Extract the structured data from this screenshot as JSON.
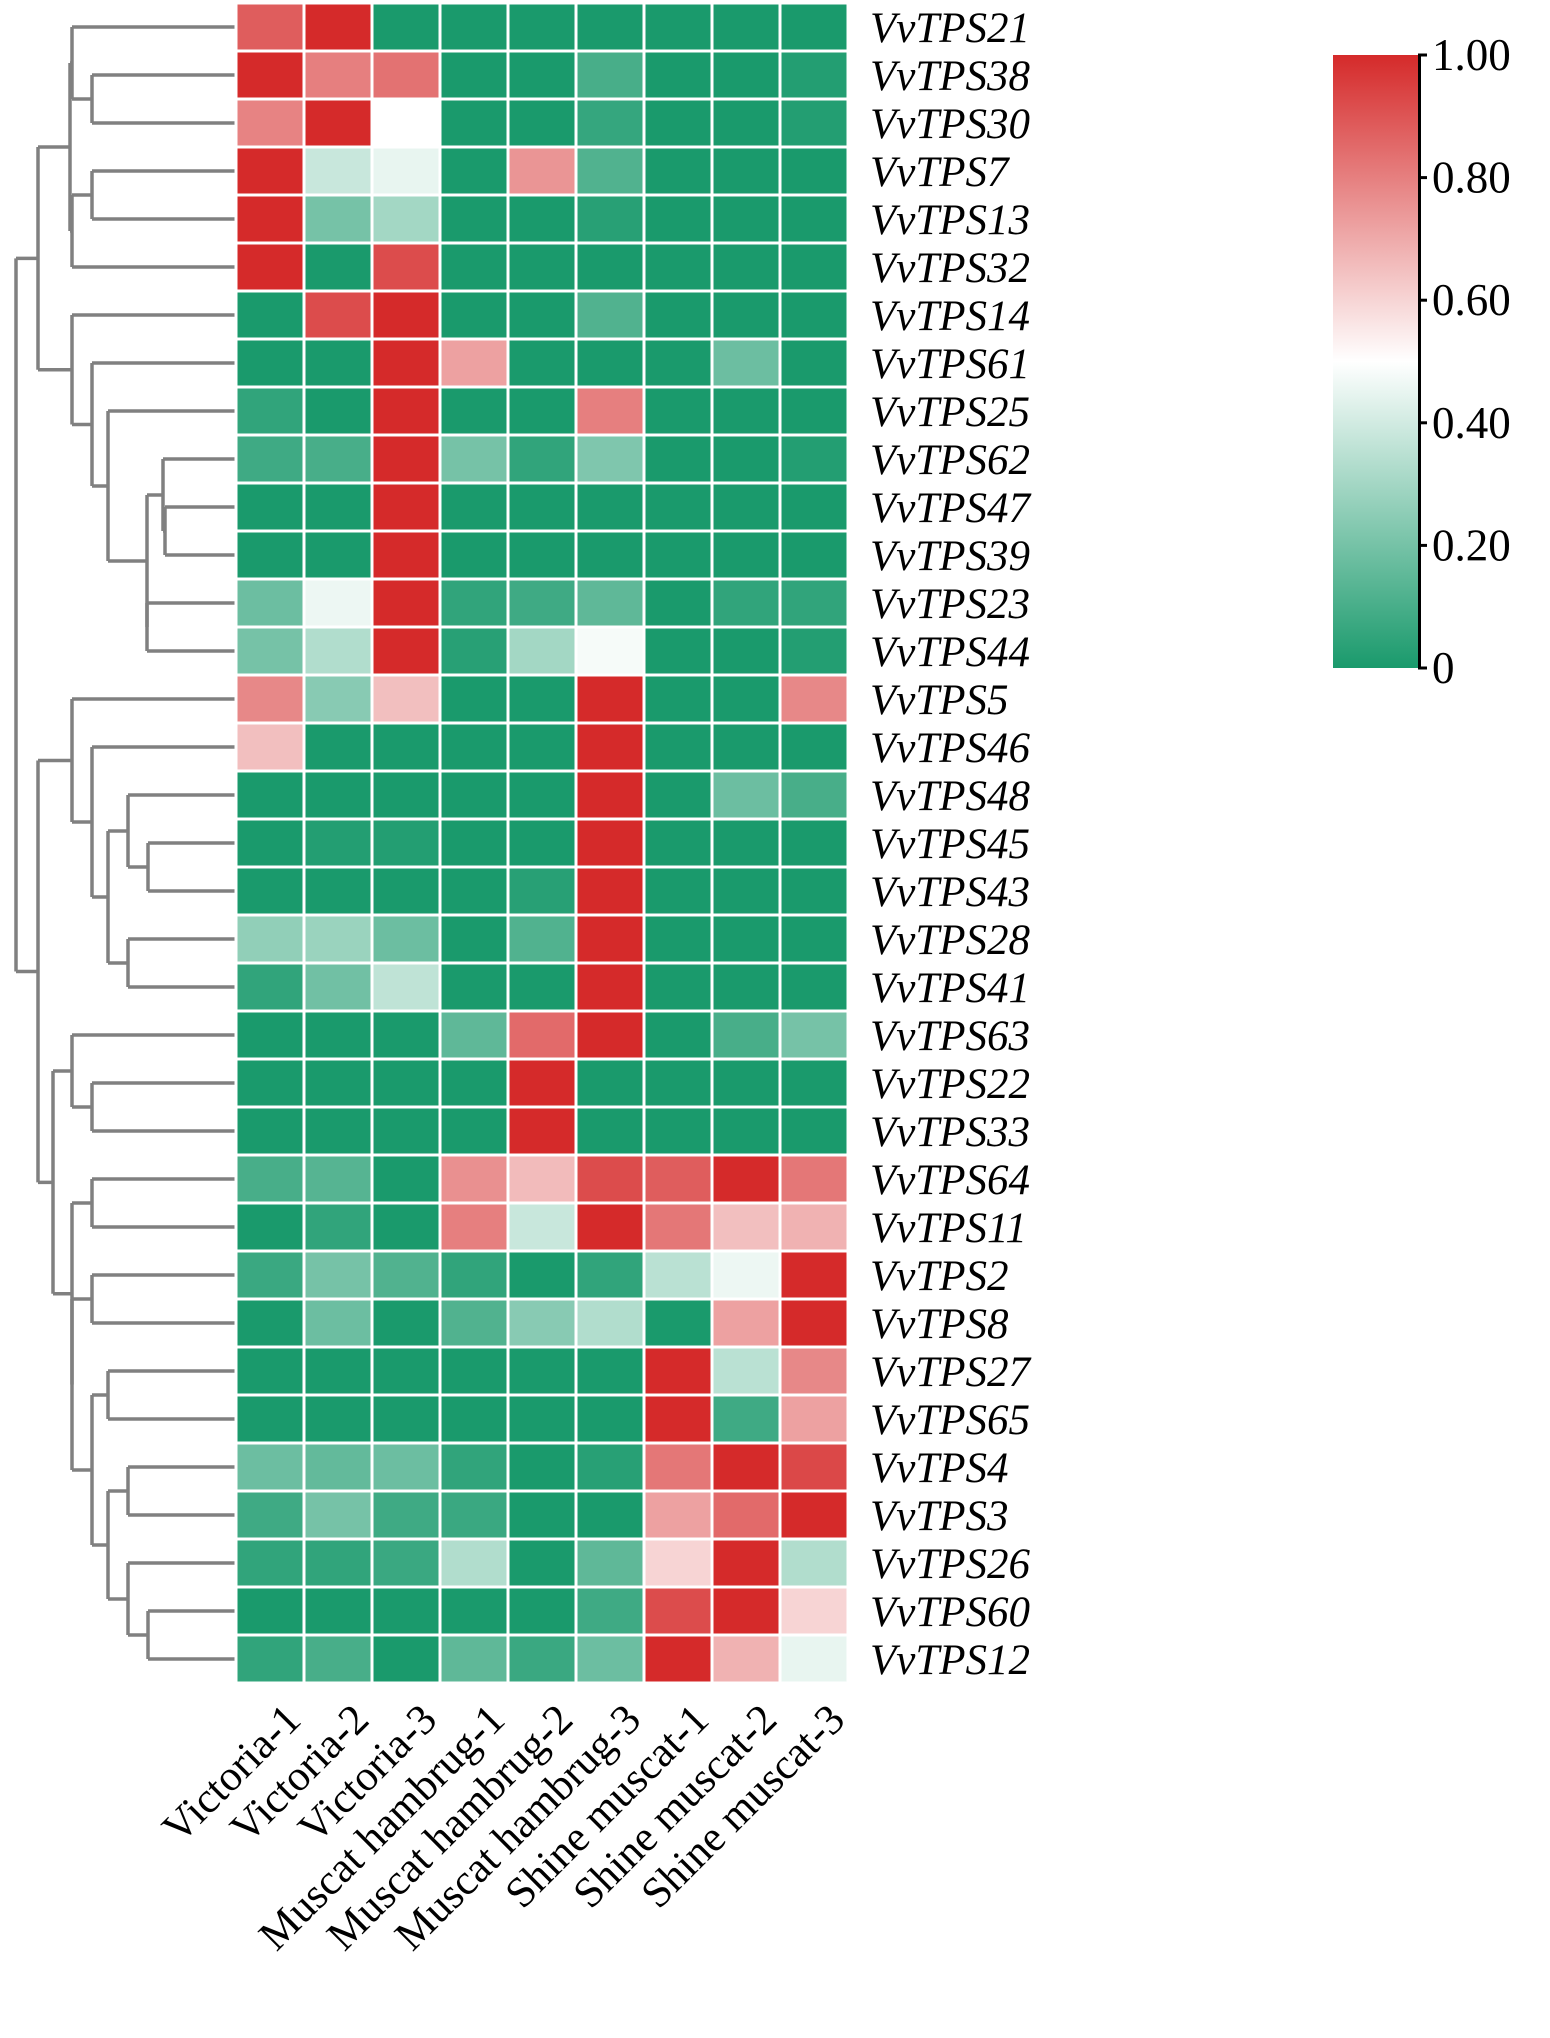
{
  "chart_data": {
    "type": "heatmap",
    "title": "",
    "xlabel": "",
    "ylabel": "",
    "columns": [
      "Victoria-1",
      "Victoria-2",
      "Victoria-3",
      "Muscat hambrug-1",
      "Muscat hambrug-2",
      "Muscat hambrug-3",
      "Shine muscat-1",
      "Shine muscat-2",
      "Shine muscat-3"
    ],
    "rows": [
      "VvTPS21",
      "VvTPS38",
      "VvTPS30",
      "VvTPS7",
      "VvTPS13",
      "VvTPS32",
      "VvTPS14",
      "VvTPS61",
      "VvTPS25",
      "VvTPS62",
      "VvTPS47",
      "VvTPS39",
      "VvTPS23",
      "VvTPS44",
      "VvTPS5",
      "VvTPS46",
      "VvTPS48",
      "VvTPS45",
      "VvTPS43",
      "VvTPS28",
      "VvTPS41",
      "VvTPS63",
      "VvTPS22",
      "VvTPS33",
      "VvTPS64",
      "VvTPS11",
      "VvTPS2",
      "VvTPS8",
      "VvTPS27",
      "VvTPS65",
      "VvTPS4",
      "VvTPS3",
      "VvTPS26",
      "VvTPS60",
      "VvTPS12"
    ],
    "values": [
      [
        0.88,
        1.0,
        0.0,
        0.0,
        0.0,
        0.0,
        0.0,
        0.0,
        0.0
      ],
      [
        1.0,
        0.8,
        0.83,
        0.0,
        0.0,
        0.1,
        0.0,
        0.0,
        0.02
      ],
      [
        0.79,
        1.0,
        0.5,
        0.0,
        0.0,
        0.06,
        0.0,
        0.0,
        0.02
      ],
      [
        1.0,
        0.38,
        0.45,
        0.0,
        0.75,
        0.12,
        0.0,
        0.0,
        0.0
      ],
      [
        1.0,
        0.2,
        0.3,
        0.0,
        0.0,
        0.03,
        0.0,
        0.0,
        0.0
      ],
      [
        1.0,
        0.0,
        0.92,
        0.0,
        0.0,
        0.0,
        0.0,
        0.0,
        0.0
      ],
      [
        0.0,
        0.92,
        1.0,
        0.0,
        0.0,
        0.12,
        0.0,
        0.0,
        0.0
      ],
      [
        0.0,
        0.0,
        1.0,
        0.72,
        0.0,
        0.0,
        0.0,
        0.18,
        0.0
      ],
      [
        0.05,
        0.0,
        1.0,
        0.0,
        0.0,
        0.8,
        0.0,
        0.0,
        0.0
      ],
      [
        0.08,
        0.1,
        1.0,
        0.2,
        0.05,
        0.22,
        0.0,
        0.0,
        0.02
      ],
      [
        0.0,
        0.0,
        1.0,
        0.0,
        0.0,
        0.0,
        0.0,
        0.0,
        0.0
      ],
      [
        0.0,
        0.0,
        1.0,
        0.0,
        0.0,
        0.0,
        0.0,
        0.0,
        0.0
      ],
      [
        0.18,
        0.46,
        1.0,
        0.05,
        0.08,
        0.15,
        0.0,
        0.05,
        0.05
      ],
      [
        0.2,
        0.33,
        1.0,
        0.03,
        0.3,
        0.48,
        0.0,
        0.0,
        0.02
      ],
      [
        0.78,
        0.24,
        0.65,
        0.0,
        0.0,
        1.0,
        0.0,
        0.0,
        0.78
      ],
      [
        0.65,
        0.0,
        0.0,
        0.0,
        0.0,
        1.0,
        0.0,
        0.0,
        0.0
      ],
      [
        0.0,
        0.0,
        0.0,
        0.0,
        0.0,
        1.0,
        0.0,
        0.18,
        0.1
      ],
      [
        0.0,
        0.02,
        0.02,
        0.0,
        0.0,
        1.0,
        0.0,
        0.0,
        0.0
      ],
      [
        0.0,
        0.0,
        0.0,
        0.0,
        0.03,
        1.0,
        0.0,
        0.0,
        0.0
      ],
      [
        0.26,
        0.28,
        0.18,
        0.0,
        0.12,
        1.0,
        0.0,
        0.0,
        0.0
      ],
      [
        0.05,
        0.19,
        0.36,
        0.0,
        0.0,
        1.0,
        0.0,
        0.0,
        0.0
      ],
      [
        0.0,
        0.0,
        0.0,
        0.15,
        0.85,
        1.0,
        0.0,
        0.1,
        0.2
      ],
      [
        0.0,
        0.0,
        0.0,
        0.0,
        1.0,
        0.0,
        0.0,
        0.0,
        0.0
      ],
      [
        0.0,
        0.0,
        0.0,
        0.0,
        1.0,
        0.0,
        0.0,
        0.0,
        0.0
      ],
      [
        0.1,
        0.13,
        0.0,
        0.76,
        0.66,
        0.92,
        0.88,
        1.0,
        0.82
      ],
      [
        0.0,
        0.05,
        0.0,
        0.8,
        0.38,
        1.0,
        0.82,
        0.65,
        0.68
      ],
      [
        0.07,
        0.2,
        0.12,
        0.05,
        0.0,
        0.05,
        0.35,
        0.46,
        1.0
      ],
      [
        0.0,
        0.18,
        0.0,
        0.12,
        0.24,
        0.33,
        0.0,
        0.72,
        1.0
      ],
      [
        0.0,
        0.0,
        0.0,
        0.0,
        0.0,
        0.0,
        1.0,
        0.35,
        0.78
      ],
      [
        0.0,
        0.0,
        0.0,
        0.0,
        0.0,
        0.0,
        1.0,
        0.08,
        0.72
      ],
      [
        0.18,
        0.16,
        0.18,
        0.05,
        0.0,
        0.03,
        0.82,
        1.0,
        0.93
      ],
      [
        0.08,
        0.2,
        0.08,
        0.07,
        0.0,
        0.0,
        0.72,
        0.85,
        1.0
      ],
      [
        0.05,
        0.05,
        0.07,
        0.33,
        0.0,
        0.15,
        0.6,
        1.0,
        0.33
      ],
      [
        0.0,
        0.0,
        0.0,
        0.0,
        0.0,
        0.08,
        0.92,
        1.0,
        0.6
      ],
      [
        0.05,
        0.1,
        0.0,
        0.15,
        0.07,
        0.18,
        1.0,
        0.68,
        0.45
      ]
    ],
    "color_scale": {
      "min": 0,
      "max": 1,
      "stops": [
        {
          "value": 0,
          "color": "#1a9a6c"
        },
        {
          "value": 0.5,
          "color": "#ffffff"
        },
        {
          "value": 1,
          "color": "#d52a2a"
        }
      ],
      "ticks": [
        "0",
        "0.20",
        "0.40",
        "0.60",
        "0.80",
        "1.00"
      ]
    },
    "legend_placement": "top-right"
  }
}
